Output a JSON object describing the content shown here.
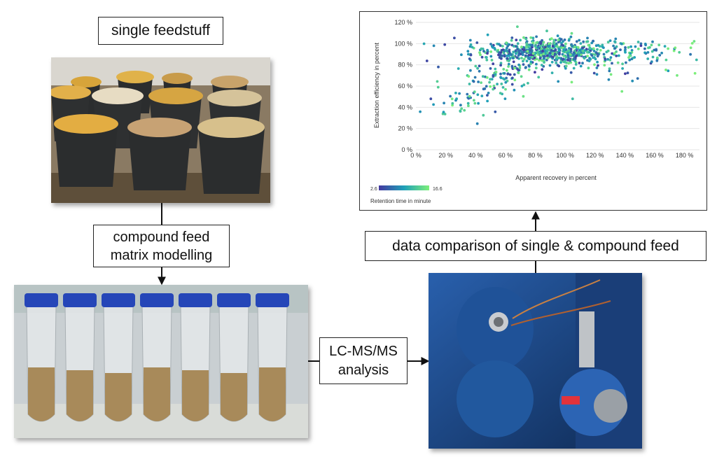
{
  "labels": {
    "single_feedstuff": "single feedstuff",
    "compound_feed_line1": "compound feed",
    "compound_feed_line2": "matrix modelling",
    "lcms_line1": "LC-MS/MS",
    "lcms_line2": "analysis",
    "data_comparison": "data comparison of single & compound feed"
  },
  "photos": {
    "grain_buckets": "grain-buckets-photo",
    "sample_tubes": "sample-tubes-photo",
    "mass_spectrometer": "mass-spectrometer-photo"
  },
  "colors": {
    "viridis_low": "#4438a0",
    "viridis_mid": "#1fa0b8",
    "viridis_high": "#7ef07a",
    "bucket": "#2b2d2e",
    "instrument_blue": "#1d4a8c",
    "tube_cap": "#2546b8"
  },
  "chart_data": {
    "type": "scatter",
    "xlabel": "Apparent recovery in percent",
    "ylabel": "Extraction efficiency in percent",
    "x_ticks": [
      "0 %",
      "20 %",
      "40 %",
      "60 %",
      "80 %",
      "100 %",
      "120 %",
      "140 %",
      "160 %",
      "180 %"
    ],
    "y_ticks": [
      "0 %",
      "20 %",
      "40 %",
      "60 %",
      "80 %",
      "100 %",
      "120 %"
    ],
    "xlim": [
      0,
      190
    ],
    "ylim": [
      0,
      120
    ],
    "grid": true,
    "colorbar": {
      "label": "Retention time in minute",
      "min": "2.6",
      "max": "16.6",
      "min_value": 2.6,
      "max_value": 16.6
    },
    "clusters": [
      {
        "n": 520,
        "cx": 82,
        "sx": 22,
        "cy": 93,
        "sy": 6,
        "rt_min": 2.6,
        "rt_max": 16.6
      },
      {
        "n": 160,
        "cx": 105,
        "sx": 30,
        "cy": 87,
        "sy": 8,
        "rt_min": 2.6,
        "rt_max": 16.6
      },
      {
        "n": 90,
        "cx": 55,
        "sx": 12,
        "cy": 68,
        "sy": 10,
        "rt_min": 2.6,
        "rt_max": 16.6
      },
      {
        "n": 35,
        "cx": 28,
        "sx": 8,
        "cy": 45,
        "sy": 12,
        "rt_min": 6,
        "rt_max": 16.6
      },
      {
        "n": 60,
        "cx": 150,
        "sx": 22,
        "cy": 94,
        "sy": 5,
        "rt_min": 6,
        "rt_max": 16.6
      }
    ],
    "points": [
      {
        "x": 187,
        "y": 72,
        "rt": 16.6
      },
      {
        "x": 175,
        "y": 70,
        "rt": 16
      },
      {
        "x": 138,
        "y": 55,
        "rt": 16
      },
      {
        "x": 105,
        "y": 48,
        "rt": 12
      },
      {
        "x": 10,
        "y": 48,
        "rt": 4
      },
      {
        "x": 68,
        "y": 116,
        "rt": 14
      },
      {
        "x": 15,
        "y": 78,
        "rt": 5
      },
      {
        "x": 12,
        "y": 98,
        "rt": 8
      }
    ]
  }
}
